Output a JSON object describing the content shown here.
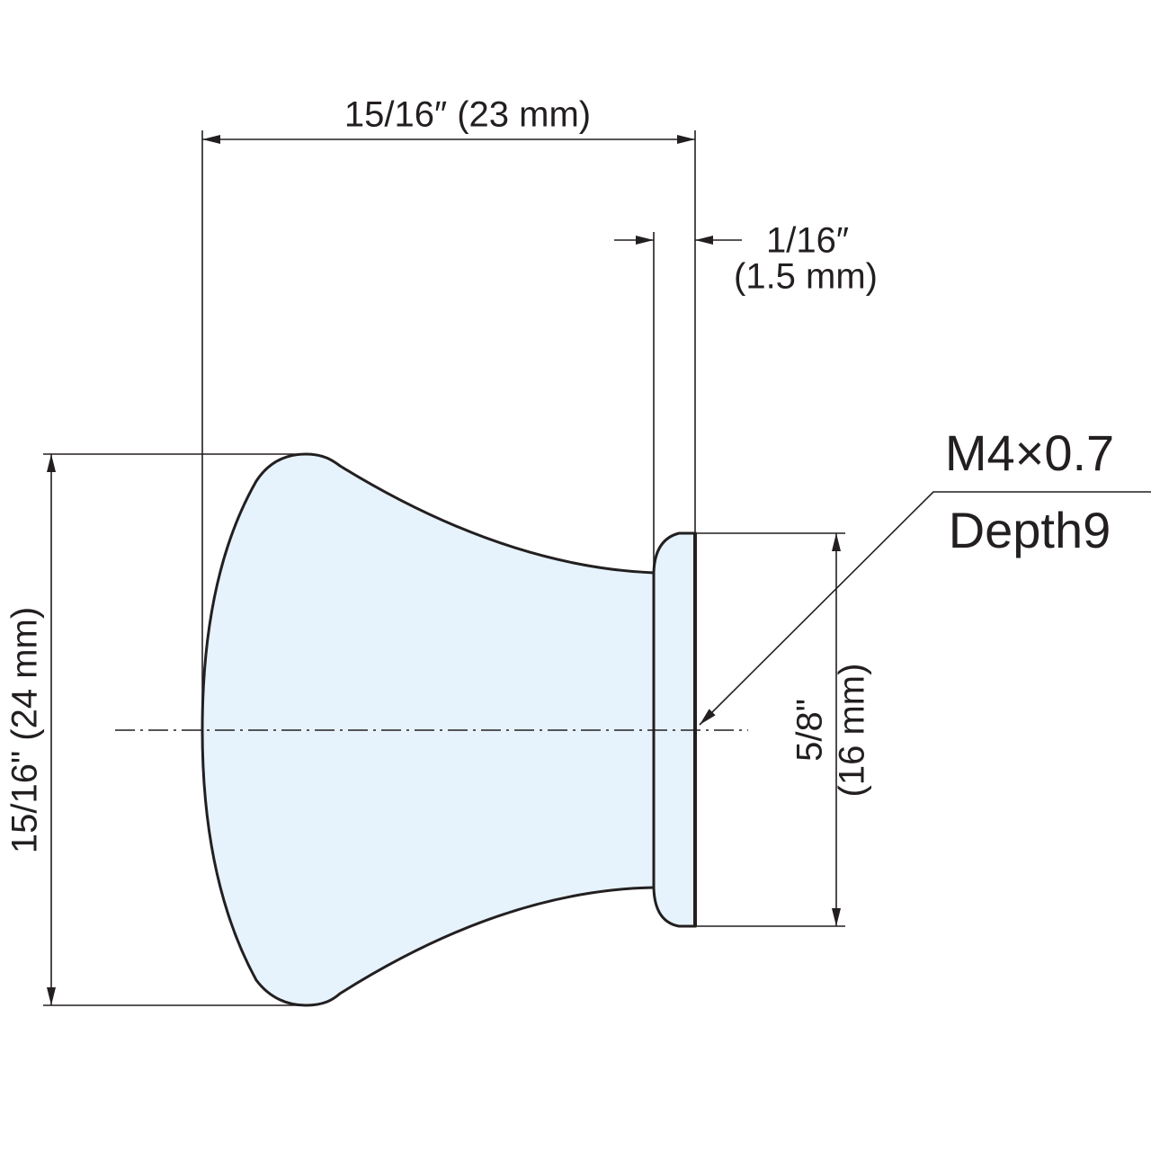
{
  "dimensions": {
    "overall_length": "15/16″ (23 mm)",
    "collar_length": {
      "imperial": "1/16″",
      "metric": "(1.5 mm)"
    },
    "head_diameter": "15/16\" (24 mm)",
    "collar_diameter": {
      "imperial": "5/8\"",
      "metric": "(16 mm)"
    },
    "thread": {
      "size": "M4×0.7",
      "depth": "Depth9"
    }
  }
}
